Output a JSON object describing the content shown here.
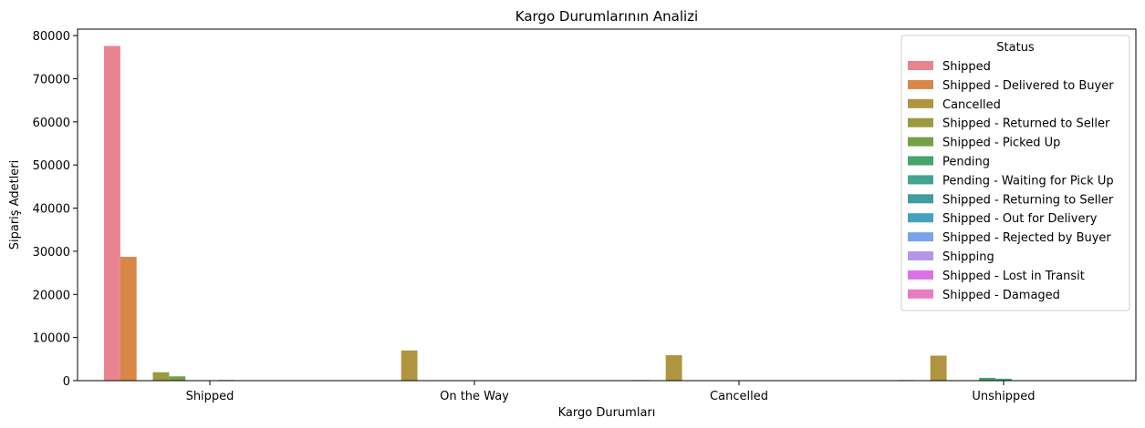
{
  "chart_data": {
    "type": "bar",
    "title": "Kargo Durumlarının Analizi",
    "xlabel": "Kargo Durumları",
    "ylabel": "Sipariş Adetleri",
    "ylim": [
      0,
      81500
    ],
    "yticks": [
      0,
      10000,
      20000,
      30000,
      40000,
      50000,
      60000,
      70000,
      80000
    ],
    "categories": [
      "Shipped",
      "On the Way",
      "Cancelled",
      "Unshipped"
    ],
    "legend": {
      "title": "Status",
      "position": "top-right"
    },
    "series": [
      {
        "name": "Shipped",
        "color": "#e8838f",
        "values": [
          77600,
          0,
          150,
          150
        ]
      },
      {
        "name": "Shipped - Delivered to Buyer",
        "color": "#d88746",
        "values": [
          28700,
          0,
          0,
          0
        ]
      },
      {
        "name": "Cancelled",
        "color": "#b09440",
        "values": [
          0,
          7000,
          5900,
          5800
        ]
      },
      {
        "name": "Shipped - Returned to Seller",
        "color": "#9a9a41",
        "values": [
          1950,
          0,
          0,
          0
        ]
      },
      {
        "name": "Shipped - Picked Up",
        "color": "#75a046",
        "values": [
          1000,
          0,
          0,
          0
        ]
      },
      {
        "name": "Pending",
        "color": "#45a56a",
        "values": [
          0,
          0,
          0,
          650
        ]
      },
      {
        "name": "Pending - Waiting for Pick Up",
        "color": "#42a58f",
        "values": [
          0,
          0,
          0,
          450
        ]
      },
      {
        "name": "Shipped - Returning to Seller",
        "color": "#419d9e",
        "values": [
          150,
          0,
          0,
          0
        ]
      },
      {
        "name": "Shipped - Out for Delivery",
        "color": "#46a1c0",
        "values": [
          100,
          0,
          0,
          0
        ]
      },
      {
        "name": "Shipped - Rejected by Buyer",
        "color": "#79a3e8",
        "values": [
          20,
          0,
          0,
          0
        ]
      },
      {
        "name": "Shipping",
        "color": "#b596e6",
        "values": [
          10,
          0,
          0,
          0
        ]
      },
      {
        "name": "Shipped - Lost in Transit",
        "color": "#de71e6",
        "values": [
          5,
          0,
          0,
          0
        ]
      },
      {
        "name": "Shipped - Damaged",
        "color": "#e77cc1",
        "values": [
          1,
          0,
          0,
          0
        ]
      }
    ]
  }
}
